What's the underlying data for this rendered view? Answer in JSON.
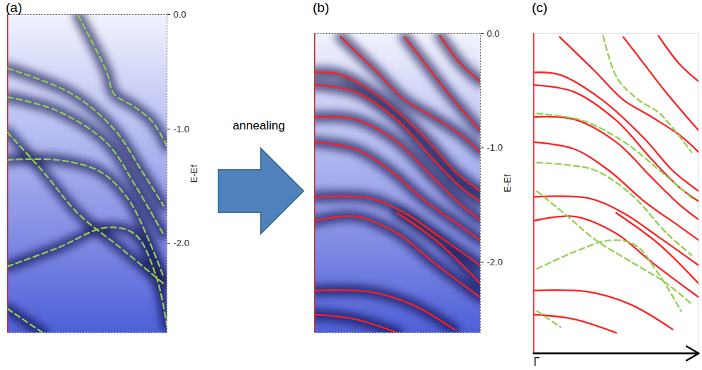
{
  "chart_data": [
    {
      "type": "line",
      "title": "(a)",
      "ylabel": "E-Ef",
      "xlim": [
        0,
        1
      ],
      "ylim": [
        -2.78,
        0
      ],
      "yticks": [
        {
          "value": 0,
          "label": "0.0"
        },
        {
          "value": -1,
          "label": "-1.0"
        },
        {
          "value": -2,
          "label": "-2.0"
        }
      ],
      "tick_labels": "y",
      "series": [
        {
          "color": "#92d050",
          "line_style": "dashed",
          "x": [
            0.444,
            0.622,
            0.667,
            0.8,
            0.911,
            1.0
          ],
          "values": [
            -0.01,
            -0.5,
            -0.69,
            -0.81,
            -0.94,
            -1.15
          ]
        },
        {
          "color": "#92d050",
          "line_style": "dashed",
          "x": [
            0,
            0.4,
            0.667,
            0.844,
            0.978
          ],
          "values": [
            -0.47,
            -0.69,
            -1.0,
            -1.37,
            -1.67
          ]
        },
        {
          "color": "#92d050",
          "line_style": "dashed",
          "x": [
            0,
            0.311,
            0.622,
            0.8,
            0.978
          ],
          "values": [
            -0.72,
            -0.84,
            -1.12,
            -1.49,
            -1.92
          ]
        },
        {
          "color": "#92d050",
          "line_style": "dashed",
          "x": [
            0,
            0.311,
            0.578,
            0.756,
            0.889,
            0.978
          ],
          "values": [
            -1.27,
            -1.27,
            -1.37,
            -1.61,
            -1.98,
            -2.29
          ]
        },
        {
          "color": "#92d050",
          "line_style": "dashed",
          "x": [
            0,
            0.222,
            0.444,
            0.711,
            0.978
          ],
          "values": [
            -1.03,
            -1.37,
            -1.74,
            -2.04,
            -2.35
          ]
        },
        {
          "color": "#92d050",
          "line_style": "dashed",
          "x": [
            0,
            0.311,
            0.622,
            0.8,
            0.933,
            1.0
          ],
          "values": [
            -2.2,
            -2.04,
            -1.86,
            -1.92,
            -2.29,
            -2.72
          ]
        },
        {
          "color": "#92d050",
          "line_style": "dashed",
          "x": [
            0,
            0.222
          ],
          "values": [
            -2.57,
            -2.78
          ]
        }
      ]
    },
    {
      "type": "line",
      "title": "(b)",
      "ylabel": "E-Ef",
      "xlim": [
        0,
        1
      ],
      "ylim": [
        -2.62,
        0
      ],
      "yticks": [
        {
          "value": 0,
          "label": "0.0"
        },
        {
          "value": -1,
          "label": "-1.0"
        },
        {
          "value": -2,
          "label": "-2.0"
        }
      ],
      "tick_labels": "y",
      "series": [
        {
          "color": "#ff2020",
          "line_style": "solid",
          "x": [
            0.158,
            0.372,
            0.543,
            0.714,
            0.885,
            1.0
          ],
          "values": [
            -0.03,
            -0.33,
            -0.58,
            -0.73,
            -0.89,
            -1.04
          ]
        },
        {
          "color": "#ff2020",
          "line_style": "solid",
          "x": [
            0.543,
            0.671,
            0.799,
            0.927,
            1.0
          ],
          "values": [
            -0.03,
            -0.27,
            -0.51,
            -0.73,
            -0.85
          ]
        },
        {
          "color": "#ff2020",
          "line_style": "solid",
          "x": [
            0.756,
            0.885,
            1.0
          ],
          "values": [
            -0.02,
            -0.27,
            -0.42
          ]
        },
        {
          "color": "#ff2020",
          "line_style": "solid",
          "x": [
            0,
            0.158,
            0.415,
            0.671,
            0.842,
            1.0
          ],
          "values": [
            -0.34,
            -0.36,
            -0.58,
            -0.92,
            -1.2,
            -1.38
          ]
        },
        {
          "color": "#ff2020",
          "line_style": "solid",
          "x": [
            0,
            0.244,
            0.5,
            0.714,
            0.885,
            1.0
          ],
          "values": [
            -0.45,
            -0.51,
            -0.76,
            -1.1,
            -1.35,
            -1.47
          ]
        },
        {
          "color": "#ff2020",
          "line_style": "solid",
          "x": [
            0,
            0.244,
            0.5,
            0.714,
            0.885,
            1.0
          ],
          "values": [
            -0.73,
            -0.75,
            -0.95,
            -1.26,
            -1.5,
            -1.63
          ]
        },
        {
          "color": "#ff2020",
          "line_style": "solid",
          "x": [
            0,
            0.244,
            0.457,
            0.671,
            0.885,
            1.0
          ],
          "values": [
            -0.95,
            -1.01,
            -1.2,
            -1.47,
            -1.69,
            -1.81
          ]
        },
        {
          "color": "#ff2020",
          "line_style": "solid",
          "x": [
            0,
            0.329,
            0.543,
            0.756,
            1.0
          ],
          "values": [
            -1.43,
            -1.44,
            -1.57,
            -1.78,
            -2.03
          ]
        },
        {
          "color": "#ff2020",
          "line_style": "solid",
          "x": [
            0,
            0.244,
            0.5,
            0.714,
            1.0
          ],
          "values": [
            -1.64,
            -1.6,
            -1.75,
            -2.0,
            -2.31
          ]
        },
        {
          "color": "#ff2020",
          "line_style": "solid",
          "x": [
            0.5,
            0.756,
            1.0
          ],
          "values": [
            -1.57,
            -1.84,
            -2.19
          ]
        },
        {
          "color": "#ff2020",
          "line_style": "solid",
          "x": [
            0,
            0.329,
            0.585,
            0.842
          ],
          "values": [
            -2.25,
            -2.26,
            -2.37,
            -2.59
          ]
        },
        {
          "color": "#ff2020",
          "line_style": "solid",
          "x": [
            0,
            0.244,
            0.5
          ],
          "values": [
            -2.46,
            -2.5,
            -2.62
          ]
        }
      ]
    },
    {
      "type": "line",
      "title": "(c)",
      "xlabel": "Γ",
      "xlim": [
        0,
        1
      ],
      "ylim": [
        -2.8,
        0
      ],
      "tick_labels": false,
      "series": [
        {
          "color": "#ff2020",
          "line_style": "solid",
          "x": [
            0.158,
            0.372,
            0.543,
            0.714,
            0.885,
            1.0
          ],
          "values": [
            -0.03,
            -0.33,
            -0.58,
            -0.73,
            -0.89,
            -1.04
          ]
        },
        {
          "color": "#ff2020",
          "line_style": "solid",
          "x": [
            0.543,
            0.671,
            0.799,
            0.927,
            1.0
          ],
          "values": [
            -0.03,
            -0.27,
            -0.51,
            -0.73,
            -0.85
          ]
        },
        {
          "color": "#ff2020",
          "line_style": "solid",
          "x": [
            0.756,
            0.885,
            1.0
          ],
          "values": [
            -0.02,
            -0.27,
            -0.42
          ]
        },
        {
          "color": "#ff2020",
          "line_style": "solid",
          "x": [
            0,
            0.158,
            0.415,
            0.671,
            0.842,
            1.0
          ],
          "values": [
            -0.34,
            -0.36,
            -0.58,
            -0.92,
            -1.2,
            -1.38
          ]
        },
        {
          "color": "#ff2020",
          "line_style": "solid",
          "x": [
            0,
            0.244,
            0.5,
            0.714,
            0.885,
            1.0
          ],
          "values": [
            -0.45,
            -0.51,
            -0.76,
            -1.1,
            -1.35,
            -1.47
          ]
        },
        {
          "color": "#ff2020",
          "line_style": "solid",
          "x": [
            0,
            0.244,
            0.5,
            0.714,
            0.885,
            1.0
          ],
          "values": [
            -0.73,
            -0.75,
            -0.95,
            -1.26,
            -1.5,
            -1.63
          ]
        },
        {
          "color": "#ff2020",
          "line_style": "solid",
          "x": [
            0,
            0.244,
            0.457,
            0.671,
            0.885,
            1.0
          ],
          "values": [
            -0.95,
            -1.01,
            -1.2,
            -1.47,
            -1.69,
            -1.81
          ]
        },
        {
          "color": "#ff2020",
          "line_style": "solid",
          "x": [
            0,
            0.329,
            0.543,
            0.756,
            1.0
          ],
          "values": [
            -1.43,
            -1.44,
            -1.57,
            -1.78,
            -2.03
          ]
        },
        {
          "color": "#ff2020",
          "line_style": "solid",
          "x": [
            0,
            0.244,
            0.5,
            0.714,
            1.0
          ],
          "values": [
            -1.64,
            -1.6,
            -1.75,
            -2.0,
            -2.31
          ]
        },
        {
          "color": "#ff2020",
          "line_style": "solid",
          "x": [
            0.5,
            0.756,
            1.0
          ],
          "values": [
            -1.57,
            -1.84,
            -2.19
          ]
        },
        {
          "color": "#ff2020",
          "line_style": "solid",
          "x": [
            0,
            0.329,
            0.585,
            0.842
          ],
          "values": [
            -2.25,
            -2.26,
            -2.37,
            -2.59
          ]
        },
        {
          "color": "#ff2020",
          "line_style": "solid",
          "x": [
            0,
            0.244,
            0.5
          ],
          "values": [
            -2.46,
            -2.5,
            -2.62
          ]
        },
        {
          "color": "#92d050",
          "line_style": "dashed",
          "x": [
            0.421,
            0.506,
            0.635,
            0.764,
            0.957
          ],
          "values": [
            -0.02,
            -0.39,
            -0.58,
            -0.7,
            -1.04
          ]
        },
        {
          "color": "#92d050",
          "line_style": "dashed",
          "x": [
            0.021,
            0.292,
            0.549,
            0.764,
            0.957
          ],
          "values": [
            -0.7,
            -0.76,
            -0.95,
            -1.2,
            -1.44
          ]
        },
        {
          "color": "#92d050",
          "line_style": "dashed",
          "x": [
            0.021,
            0.206,
            0.378,
            0.592,
            0.807,
            0.957
          ],
          "values": [
            -1.13,
            -1.15,
            -1.2,
            -1.41,
            -1.75,
            -1.94
          ]
        },
        {
          "color": "#92d050",
          "line_style": "dashed",
          "x": [
            0.021,
            0.206,
            0.378,
            0.592,
            0.807,
            0.957
          ],
          "values": [
            -1.38,
            -1.6,
            -1.81,
            -2.0,
            -2.19,
            -2.37
          ]
        },
        {
          "color": "#92d050",
          "line_style": "dashed",
          "x": [
            0.021,
            0.249,
            0.464,
            0.614,
            0.764,
            0.893
          ],
          "values": [
            -2.06,
            -1.91,
            -1.81,
            -1.85,
            -2.12,
            -2.43
          ]
        },
        {
          "color": "#92d050",
          "line_style": "dashed",
          "x": [
            0.021,
            0.163
          ],
          "values": [
            -2.43,
            -2.57
          ]
        }
      ]
    }
  ],
  "annotation": "annealing"
}
